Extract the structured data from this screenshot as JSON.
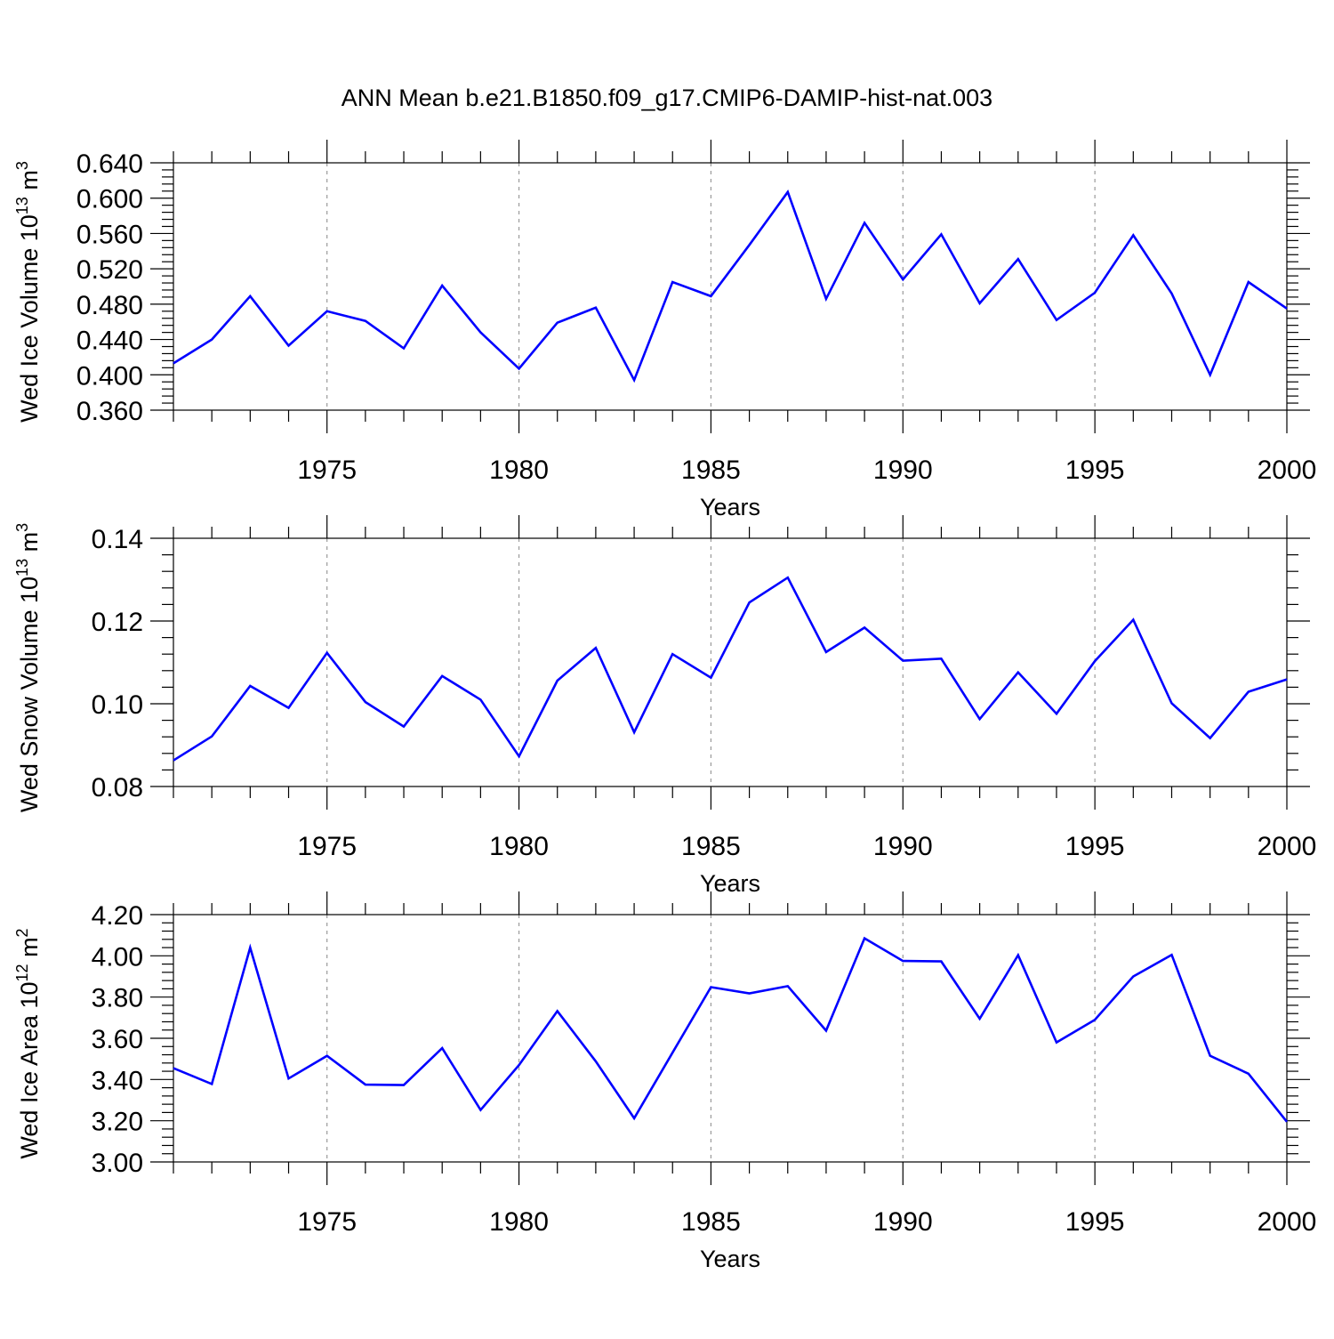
{
  "title": "ANN Mean b.e21.B1850.f09_g17.CMIP6-DAMIP-hist-nat.003",
  "colors": {
    "series": "#0000ff",
    "grid": "#9a9a9a",
    "axis": "#000000"
  },
  "chart_data": [
    {
      "type": "line",
      "title": "ANN Mean b.e21.B1850.f09_g17.CMIP6-DAMIP-hist-nat.003",
      "xlabel": "Years",
      "ylabel": "Wed Ice Volume 10",
      "ylabel_exp": "13",
      "ylabel_unit": "m",
      "ylabel_unit_exp": "3",
      "xlim": [
        1971,
        2000
      ],
      "ylim": [
        0.36,
        0.64
      ],
      "x_ticks": [
        1975,
        1980,
        1985,
        1990,
        1995,
        2000
      ],
      "y_ticks": [
        "0.360",
        "0.400",
        "0.440",
        "0.480",
        "0.520",
        "0.560",
        "0.600",
        "0.640"
      ],
      "grid": "vertical dashed at major x ticks",
      "x": [
        1971,
        1972,
        1973,
        1974,
        1975,
        1976,
        1977,
        1978,
        1979,
        1980,
        1981,
        1982,
        1983,
        1984,
        1985,
        1986,
        1987,
        1988,
        1989,
        1990,
        1991,
        1992,
        1993,
        1994,
        1995,
        1996,
        1997,
        1998,
        1999,
        2000
      ],
      "values": [
        0.413,
        0.44,
        0.489,
        0.433,
        0.472,
        0.461,
        0.43,
        0.501,
        0.448,
        0.407,
        0.459,
        0.476,
        0.394,
        0.505,
        0.489,
        0.547,
        0.607,
        0.486,
        0.572,
        0.508,
        0.559,
        0.481,
        0.531,
        0.462,
        0.493,
        0.558,
        0.492,
        0.4,
        0.505,
        0.475
      ]
    },
    {
      "type": "line",
      "xlabel": "Years",
      "ylabel": "Wed Snow Volume 10",
      "ylabel_exp": "13",
      "ylabel_unit": "m",
      "ylabel_unit_exp": "3",
      "xlim": [
        1971,
        2000
      ],
      "ylim": [
        0.08,
        0.14
      ],
      "x_ticks": [
        1975,
        1980,
        1985,
        1990,
        1995,
        2000
      ],
      "y_ticks": [
        "0.08",
        "0.10",
        "0.12",
        "0.14"
      ],
      "grid": "vertical dashed at major x ticks",
      "x": [
        1971,
        1972,
        1973,
        1974,
        1975,
        1976,
        1977,
        1978,
        1979,
        1980,
        1981,
        1982,
        1983,
        1984,
        1985,
        1986,
        1987,
        1988,
        1989,
        1990,
        1991,
        1992,
        1993,
        1994,
        1995,
        1996,
        1997,
        1998,
        1999,
        2000
      ],
      "values": [
        0.0863,
        0.0921,
        0.1043,
        0.099,
        0.1123,
        0.1004,
        0.0945,
        0.1067,
        0.101,
        0.0873,
        0.1056,
        0.1135,
        0.0931,
        0.112,
        0.1063,
        0.1245,
        0.1305,
        0.1125,
        0.1184,
        0.1104,
        0.1109,
        0.0963,
        0.1076,
        0.0976,
        0.1103,
        0.1203,
        0.1001,
        0.0917,
        0.1029,
        0.1059
      ]
    },
    {
      "type": "line",
      "xlabel": "Years",
      "ylabel": "Wed Ice Area 10",
      "ylabel_exp": "12",
      "ylabel_unit": "m",
      "ylabel_unit_exp": "2",
      "xlim": [
        1971,
        2000
      ],
      "ylim": [
        3.0,
        4.2
      ],
      "x_ticks": [
        1975,
        1980,
        1985,
        1990,
        1995,
        2000
      ],
      "y_ticks": [
        "3.00",
        "3.20",
        "3.40",
        "3.60",
        "3.80",
        "4.00",
        "4.20"
      ],
      "grid": "vertical dashed at major x ticks",
      "x": [
        1971,
        1972,
        1973,
        1974,
        1975,
        1976,
        1977,
        1978,
        1979,
        1980,
        1981,
        1982,
        1983,
        1984,
        1985,
        1986,
        1987,
        1988,
        1989,
        1990,
        1991,
        1992,
        1993,
        1994,
        1995,
        1996,
        1997,
        1998,
        1999,
        2000
      ],
      "values": [
        3.455,
        3.378,
        4.04,
        3.405,
        3.515,
        3.375,
        3.373,
        3.552,
        3.252,
        3.47,
        3.732,
        3.488,
        3.212,
        3.53,
        3.848,
        3.818,
        3.853,
        3.637,
        4.085,
        3.975,
        3.973,
        3.695,
        4.003,
        3.58,
        3.69,
        3.9,
        4.005,
        3.515,
        3.428,
        3.195
      ]
    }
  ]
}
